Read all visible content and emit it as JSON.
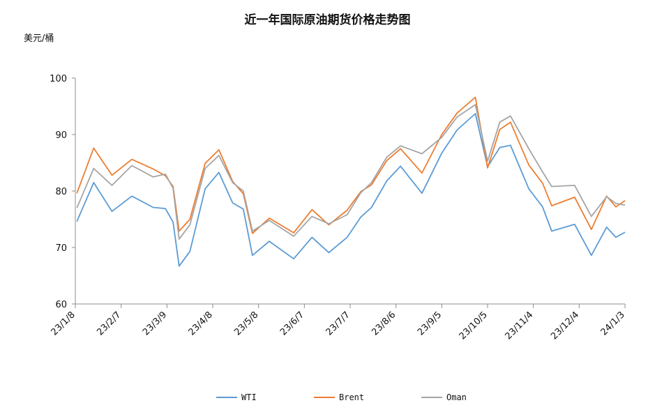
{
  "chart_data": {
    "type": "line",
    "title": "近一年国际原油期货价格走势图",
    "ylabel": "美元/桶",
    "xlabel": "",
    "ylim": [
      60,
      100
    ],
    "y_ticks": [
      60,
      70,
      80,
      90,
      100
    ],
    "x_tick_labels": [
      "23/1/8",
      "23/2/7",
      "23/3/9",
      "23/4/8",
      "23/5/8",
      "23/6/7",
      "23/7/7",
      "23/8/6",
      "23/9/5",
      "23/10/5",
      "23/11/4",
      "23/12/4",
      "24/1/3"
    ],
    "grid": false,
    "legend_position": "bottom",
    "series": [
      {
        "name": "WTI",
        "color": "#5b9bd5",
        "x": [
          "2023-01-09",
          "2023-01-20",
          "2023-02-01",
          "2023-02-14",
          "2023-02-28",
          "2023-03-08",
          "2023-03-13",
          "2023-03-17",
          "2023-03-24",
          "2023-04-03",
          "2023-04-12",
          "2023-04-21",
          "2023-04-28",
          "2023-05-04",
          "2023-05-15",
          "2023-05-31",
          "2023-06-12",
          "2023-06-23",
          "2023-07-05",
          "2023-07-14",
          "2023-07-21",
          "2023-07-31",
          "2023-08-09",
          "2023-08-23",
          "2023-09-05",
          "2023-09-15",
          "2023-09-27",
          "2023-10-05",
          "2023-10-13",
          "2023-10-20",
          "2023-11-01",
          "2023-11-10",
          "2023-11-16",
          "2023-12-01",
          "2023-12-12",
          "2023-12-22",
          "2023-12-28",
          "2024-01-03"
        ],
        "values": [
          74.6,
          81.5,
          76.4,
          79.1,
          77.1,
          76.9,
          74.5,
          66.7,
          69.3,
          80.4,
          83.3,
          77.9,
          76.8,
          68.6,
          71.1,
          68.0,
          71.8,
          69.1,
          71.8,
          75.4,
          77.1,
          81.8,
          84.4,
          79.6,
          86.7,
          90.8,
          93.7,
          84.3,
          87.7,
          88.1,
          80.4,
          77.2,
          72.9,
          74.1,
          68.6,
          73.6,
          71.8,
          72.7
        ]
      },
      {
        "name": "Brent",
        "color": "#ed7d31",
        "x": [
          "2023-01-09",
          "2023-01-20",
          "2023-02-01",
          "2023-02-14",
          "2023-02-28",
          "2023-03-08",
          "2023-03-13",
          "2023-03-17",
          "2023-03-24",
          "2023-04-03",
          "2023-04-12",
          "2023-04-21",
          "2023-04-28",
          "2023-05-04",
          "2023-05-15",
          "2023-05-31",
          "2023-06-12",
          "2023-06-23",
          "2023-07-05",
          "2023-07-14",
          "2023-07-21",
          "2023-07-31",
          "2023-08-09",
          "2023-08-23",
          "2023-09-05",
          "2023-09-15",
          "2023-09-27",
          "2023-10-05",
          "2023-10-13",
          "2023-10-20",
          "2023-11-01",
          "2023-11-10",
          "2023-11-16",
          "2023-12-01",
          "2023-12-12",
          "2023-12-22",
          "2023-12-28",
          "2024-01-03"
        ],
        "values": [
          79.6,
          87.6,
          82.8,
          85.6,
          83.9,
          82.7,
          80.8,
          72.9,
          75.0,
          84.9,
          87.3,
          81.7,
          79.5,
          72.5,
          75.2,
          72.6,
          76.7,
          74.0,
          76.6,
          79.9,
          81.1,
          85.4,
          87.5,
          83.2,
          90.0,
          93.8,
          96.6,
          84.1,
          90.9,
          92.2,
          84.6,
          81.4,
          77.4,
          78.9,
          73.2,
          79.1,
          77.2,
          78.3
        ]
      },
      {
        "name": "Oman",
        "color": "#a5a5a5",
        "x": [
          "2023-01-09",
          "2023-01-20",
          "2023-02-01",
          "2023-02-14",
          "2023-02-28",
          "2023-03-08",
          "2023-03-13",
          "2023-03-17",
          "2023-03-24",
          "2023-04-03",
          "2023-04-12",
          "2023-04-21",
          "2023-04-28",
          "2023-05-04",
          "2023-05-15",
          "2023-05-31",
          "2023-06-12",
          "2023-06-23",
          "2023-07-05",
          "2023-07-14",
          "2023-07-21",
          "2023-07-31",
          "2023-08-09",
          "2023-08-23",
          "2023-09-05",
          "2023-09-15",
          "2023-09-27",
          "2023-10-05",
          "2023-10-13",
          "2023-10-20",
          "2023-11-01",
          "2023-11-10",
          "2023-11-16",
          "2023-12-01",
          "2023-12-12",
          "2023-12-22",
          "2023-12-28",
          "2024-01-03"
        ],
        "values": [
          77.0,
          84.0,
          81.0,
          84.5,
          82.5,
          83.0,
          80.5,
          71.5,
          74.0,
          84.0,
          86.3,
          81.5,
          80.0,
          72.9,
          74.8,
          72.0,
          75.5,
          74.2,
          75.8,
          79.7,
          81.5,
          86.0,
          88.0,
          86.6,
          89.5,
          93.1,
          95.3,
          85.3,
          92.2,
          93.3,
          87.5,
          83.4,
          80.8,
          81.0,
          75.5,
          79.0,
          77.8,
          77.5
        ]
      }
    ]
  }
}
